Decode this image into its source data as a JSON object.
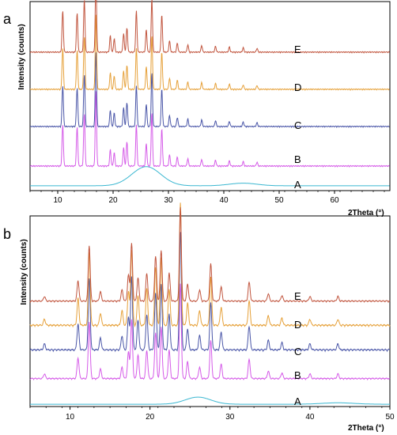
{
  "chart_data": [
    {
      "panel": "a",
      "type": "line",
      "xlabel": "2Theta (°)",
      "ylabel": "Intensity (counts)",
      "xlim": [
        5,
        70
      ],
      "xticks": [
        10,
        20,
        30,
        40,
        50,
        60
      ],
      "series": [
        {
          "name": "A",
          "color": "#3bb7d1",
          "kind": "amorphous",
          "halo_center": 26,
          "halo_height": 0.22,
          "halo_width": 2.6,
          "halo2_center": 43.5,
          "halo2_height": 0.03,
          "halo2_width": 2.5
        },
        {
          "name": "B",
          "color": "#d55be8",
          "kind": "crystalline"
        },
        {
          "name": "C",
          "color": "#4a56a8",
          "kind": "crystalline"
        },
        {
          "name": "D",
          "color": "#e6a13a",
          "kind": "crystalline"
        },
        {
          "name": "E",
          "color": "#c1553e",
          "kind": "crystalline"
        }
      ],
      "peaks_2theta": [
        {
          "x": 10.9,
          "h": 0.55
        },
        {
          "x": 13.5,
          "h": 0.52
        },
        {
          "x": 14.8,
          "h": 0.7
        },
        {
          "x": 16.9,
          "h": 1.0
        },
        {
          "x": 19.5,
          "h": 0.22
        },
        {
          "x": 20.2,
          "h": 0.18
        },
        {
          "x": 21.9,
          "h": 0.25
        },
        {
          "x": 22.5,
          "h": 0.32
        },
        {
          "x": 24.2,
          "h": 0.55
        },
        {
          "x": 26.0,
          "h": 0.3
        },
        {
          "x": 27.0,
          "h": 0.72
        },
        {
          "x": 28.8,
          "h": 0.5
        },
        {
          "x": 30.2,
          "h": 0.15
        },
        {
          "x": 31.6,
          "h": 0.12
        },
        {
          "x": 33.5,
          "h": 0.1
        },
        {
          "x": 36.0,
          "h": 0.09
        },
        {
          "x": 38.5,
          "h": 0.08
        },
        {
          "x": 41.0,
          "h": 0.07
        },
        {
          "x": 43.5,
          "h": 0.06
        },
        {
          "x": 46.0,
          "h": 0.05
        }
      ]
    },
    {
      "panel": "b",
      "type": "line",
      "xlabel": "2Theta (°)",
      "ylabel": "Intensity (counts)",
      "xlim": [
        5,
        50
      ],
      "xticks": [
        10,
        20,
        30,
        40,
        50
      ],
      "series": [
        {
          "name": "A",
          "color": "#3bb7d1",
          "kind": "amorphous",
          "halo_center": 26,
          "halo_height": 0.1,
          "halo_width": 1.6,
          "halo2_center": 43.5,
          "halo2_height": 0.02,
          "halo2_width": 2.0
        },
        {
          "name": "B",
          "color": "#d55be8",
          "kind": "crystalline"
        },
        {
          "name": "C",
          "color": "#4a56a8",
          "kind": "crystalline"
        },
        {
          "name": "D",
          "color": "#e6a13a",
          "kind": "crystalline"
        },
        {
          "name": "E",
          "color": "#c1553e",
          "kind": "crystalline"
        }
      ],
      "peaks_2theta": [
        {
          "x": 6.8,
          "h": 0.05
        },
        {
          "x": 11.0,
          "h": 0.22
        },
        {
          "x": 12.4,
          "h": 0.6
        },
        {
          "x": 13.8,
          "h": 0.1
        },
        {
          "x": 16.5,
          "h": 0.12
        },
        {
          "x": 17.3,
          "h": 0.28
        },
        {
          "x": 17.7,
          "h": 0.62
        },
        {
          "x": 18.5,
          "h": 0.25
        },
        {
          "x": 19.6,
          "h": 0.3
        },
        {
          "x": 20.7,
          "h": 0.48
        },
        {
          "x": 21.4,
          "h": 0.55
        },
        {
          "x": 22.4,
          "h": 0.3
        },
        {
          "x": 23.8,
          "h": 1.0
        },
        {
          "x": 24.7,
          "h": 0.18
        },
        {
          "x": 26.2,
          "h": 0.12
        },
        {
          "x": 27.6,
          "h": 0.4
        },
        {
          "x": 28.9,
          "h": 0.15
        },
        {
          "x": 32.4,
          "h": 0.2
        },
        {
          "x": 34.8,
          "h": 0.08
        },
        {
          "x": 36.5,
          "h": 0.06
        },
        {
          "x": 40.0,
          "h": 0.05
        },
        {
          "x": 43.5,
          "h": 0.05
        }
      ]
    }
  ]
}
